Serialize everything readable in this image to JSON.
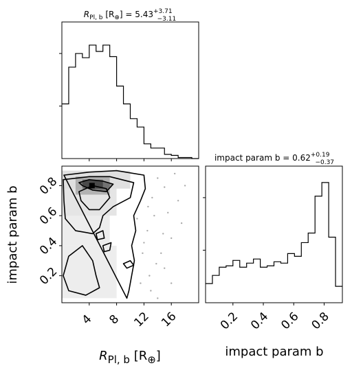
{
  "chart_data": [
    {
      "type": "histogram",
      "panel": "top-left",
      "title": {
        "prefix": "R",
        "sub": "Pl, b",
        "unit": "[R",
        "unit_sub": "⊕",
        "value": "5.43",
        "sup": "+3.71",
        "inf": "−3.11"
      },
      "bin_edges": [
        0,
        1,
        2,
        3,
        4,
        5,
        6,
        7,
        8,
        9,
        10,
        11,
        12,
        13,
        14,
        15,
        16,
        17,
        18,
        19,
        20
      ],
      "counts": [
        0.52,
        0.87,
        1.0,
        0.96,
        1.08,
        1.02,
        1.08,
        0.97,
        0.69,
        0.52,
        0.38,
        0.3,
        0.14,
        0.1,
        0.1,
        0.04,
        0.03,
        0.01,
        0.01,
        0
      ],
      "xlim": [
        0,
        20
      ],
      "ylim": [
        0,
        1.3
      ]
    },
    {
      "type": "scatter-density",
      "panel": "bottom-left",
      "xlabel": {
        "main": "R",
        "sub": "Pl, b",
        "unit": "[R",
        "unit_sub": "⊕",
        "close": "]"
      },
      "ylabel": "impact param b",
      "xlim": [
        0,
        20
      ],
      "ylim": [
        0.02,
        0.93
      ],
      "xticks": [
        4,
        8,
        12,
        16
      ],
      "yticks": [
        0.2,
        0.4,
        0.6,
        0.8
      ],
      "contours": [
        [
          [
            0.3,
            0.87
          ],
          [
            4,
            0.89
          ],
          [
            8,
            0.9
          ],
          [
            12,
            0.87
          ],
          [
            12.2,
            0.78
          ],
          [
            11.5,
            0.7
          ],
          [
            10.5,
            0.6
          ],
          [
            10.8,
            0.5
          ],
          [
            10.2,
            0.4
          ],
          [
            10.6,
            0.3
          ],
          [
            10.2,
            0.2
          ],
          [
            9.8,
            0.1
          ],
          [
            9.5,
            0.05
          ]
        ],
        [
          [
            0.2,
            0.84
          ],
          [
            4,
            0.86
          ],
          [
            7,
            0.86
          ],
          [
            10.5,
            0.82
          ],
          [
            10,
            0.72
          ],
          [
            7.5,
            0.66
          ],
          [
            6,
            0.6
          ],
          [
            5.5,
            0.52
          ],
          [
            4.5,
            0.48
          ],
          [
            2,
            0.5
          ],
          [
            0.5,
            0.58
          ],
          [
            0.3,
            0.7
          ]
        ],
        [
          [
            2.5,
            0.76
          ],
          [
            4.5,
            0.8
          ],
          [
            6.5,
            0.78
          ],
          [
            7,
            0.72
          ],
          [
            5.5,
            0.64
          ],
          [
            4,
            0.64
          ],
          [
            2.8,
            0.7
          ]
        ],
        [
          [
            2.5,
            0.82
          ],
          [
            4,
            0.84
          ],
          [
            6,
            0.83
          ],
          [
            7.5,
            0.81
          ],
          [
            6.5,
            0.76
          ],
          [
            4.5,
            0.77
          ],
          [
            3,
            0.8
          ]
        ],
        [
          [
            1,
            0.33
          ],
          [
            3,
            0.4
          ],
          [
            4.5,
            0.3
          ],
          [
            5,
            0.2
          ],
          [
            5.5,
            0.12
          ],
          [
            3.5,
            0.07
          ],
          [
            1,
            0.1
          ],
          [
            0.2,
            0.2
          ]
        ],
        [
          [
            9,
            0.28
          ],
          [
            10,
            0.3
          ],
          [
            10.5,
            0.27
          ],
          [
            9.5,
            0.25
          ]
        ],
        [
          [
            6,
            0.4
          ],
          [
            7.2,
            0.42
          ],
          [
            7,
            0.37
          ],
          [
            6.2,
            0.36
          ]
        ],
        [
          [
            5,
            0.48
          ],
          [
            6,
            0.5
          ],
          [
            6.2,
            0.45
          ],
          [
            5.2,
            0.44
          ]
        ]
      ],
      "peak": [
        4.4,
        0.8
      ],
      "points": [
        [
          14,
          0.85
        ],
        [
          15,
          0.79
        ],
        [
          13.5,
          0.6
        ],
        [
          16,
          0.45
        ],
        [
          14.5,
          0.35
        ],
        [
          12.8,
          0.2
        ],
        [
          17,
          0.7
        ],
        [
          15.5,
          0.62
        ],
        [
          13,
          0.1
        ],
        [
          16.5,
          0.88
        ],
        [
          18,
          0.8
        ],
        [
          12.5,
          0.5
        ],
        [
          14,
          0.05
        ],
        [
          11.5,
          0.15
        ],
        [
          15,
          0.25
        ],
        [
          17.5,
          0.55
        ],
        [
          13.2,
          0.72
        ],
        [
          16,
          0.15
        ],
        [
          12,
          0.42
        ],
        [
          14.8,
          0.48
        ],
        [
          11,
          0.58
        ],
        [
          12.6,
          0.66
        ],
        [
          11.8,
          0.35
        ],
        [
          13.8,
          0.28
        ]
      ]
    },
    {
      "type": "histogram",
      "panel": "bottom-right",
      "title": {
        "prefix": "impact param b",
        "value": "0.62",
        "sup": "+0.19",
        "inf": "−0.37"
      },
      "xlabel": "impact param b",
      "bin_edges": [
        0.02,
        0.065,
        0.11,
        0.155,
        0.2,
        0.245,
        0.29,
        0.335,
        0.38,
        0.425,
        0.47,
        0.515,
        0.56,
        0.605,
        0.65,
        0.695,
        0.74,
        0.785,
        0.83,
        0.875,
        0.92
      ],
      "counts": [
        0.14,
        0.2,
        0.26,
        0.27,
        0.31,
        0.26,
        0.29,
        0.32,
        0.26,
        0.27,
        0.3,
        0.29,
        0.36,
        0.34,
        0.44,
        0.51,
        0.78,
        0.88,
        0.48,
        0.12
      ],
      "xlim": [
        0.02,
        0.92
      ],
      "xticks": [
        0.2,
        0.4,
        0.6,
        0.8
      ],
      "ylim": [
        0,
        1.0
      ]
    }
  ]
}
